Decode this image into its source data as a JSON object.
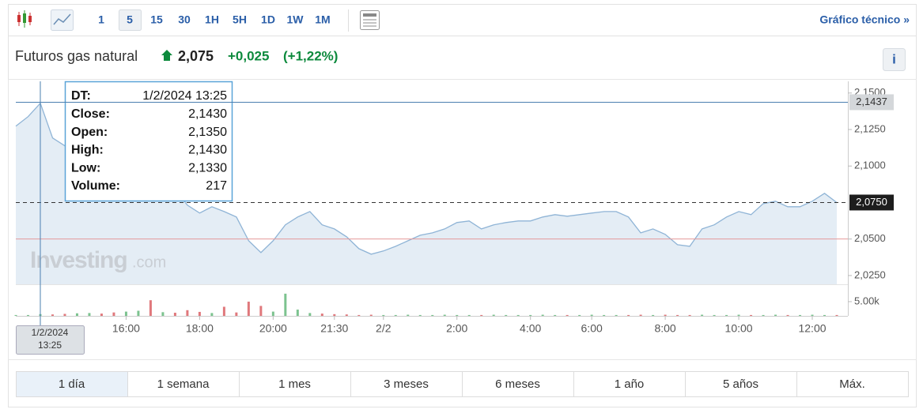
{
  "toolbar": {
    "intervals": [
      "1",
      "5",
      "15",
      "30",
      "1H",
      "5H",
      "1D",
      "1W",
      "1M"
    ],
    "technical_link": "Gráfico técnico »"
  },
  "header": {
    "name": "Futuros gas natural",
    "price": "2,075",
    "change": "+0,025",
    "change_pct": "(+1,22%)",
    "info": "i"
  },
  "tooltip": {
    "rows": [
      [
        "DT:",
        "1/2/2024 13:25"
      ],
      [
        "Close:",
        "2,1430"
      ],
      [
        "Open:",
        "2,1350"
      ],
      [
        "High:",
        "2,1430"
      ],
      [
        "Low:",
        "2,1330"
      ],
      [
        "Volume:",
        "217"
      ]
    ]
  },
  "crosshair_date": [
    "1/2/2024",
    "13:25"
  ],
  "watermark": [
    "Investing",
    ".com"
  ],
  "chart_data": [
    {
      "type": "line",
      "categories": [
        null,
        null,
        null,
        null,
        null,
        null,
        null,
        null,
        null,
        "16:00",
        null,
        null,
        null,
        null,
        null,
        "18:00",
        null,
        null,
        null,
        null,
        null,
        "20:00",
        null,
        null,
        null,
        null,
        "21:30",
        null,
        null,
        null,
        "2/2",
        null,
        null,
        null,
        null,
        null,
        "2:00",
        null,
        null,
        null,
        null,
        null,
        "4:00",
        null,
        null,
        null,
        null,
        "6:00",
        null,
        null,
        null,
        null,
        null,
        "8:00",
        null,
        null,
        null,
        null,
        null,
        "10:00",
        null,
        null,
        null,
        null,
        null,
        "12:00",
        null,
        null
      ],
      "values": [
        2.1273,
        2.1338,
        2.143,
        2.1192,
        2.1138,
        2.1165,
        2.1192,
        2.1002,
        2.0921,
        2.0975,
        2.1029,
        2.0948,
        2.1083,
        2.084,
        2.0732,
        2.0678,
        2.0721,
        2.0688,
        2.0651,
        2.0488,
        2.0407,
        2.0488,
        2.0597,
        2.0651,
        2.0688,
        2.0597,
        2.0569,
        2.0515,
        2.0434,
        2.0396,
        2.0418,
        2.045,
        2.0488,
        2.0526,
        2.0542,
        2.0569,
        2.0613,
        2.0624,
        2.0569,
        2.0597,
        2.0613,
        2.0624,
        2.0624,
        2.0651,
        2.0667,
        2.0656,
        2.0667,
        2.0678,
        2.0688,
        2.0688,
        2.0651,
        2.0542,
        2.0569,
        2.0532,
        2.0461,
        2.045,
        2.0569,
        2.0597,
        2.0651,
        2.0688,
        2.0667,
        2.0743,
        2.0759,
        2.0721,
        2.0721,
        2.0759,
        2.0813,
        2.075
      ],
      "color": "#8fb4d6",
      "fill": "#e4edf5",
      "ylim": [
        2.019,
        2.158
      ],
      "yticks": [
        {
          "value": 2.025,
          "label": "2,0250"
        },
        {
          "value": 2.05,
          "label": "2,0500"
        },
        {
          "value": 2.1,
          "label": "2,1000"
        },
        {
          "value": 2.125,
          "label": "2,1250"
        },
        {
          "value": 2.15,
          "label": "2,1500"
        }
      ],
      "crosshair_price": {
        "value": 2.1437,
        "label": "2,1437"
      },
      "last_price": {
        "value": 2.075,
        "label": "2,0750"
      },
      "reference_line": 2.05
    },
    {
      "type": "bar",
      "values": [
        300,
        300,
        600,
        500,
        700,
        900,
        1000,
        800,
        1200,
        1500,
        1800,
        5500,
        1300,
        1100,
        2000,
        1400,
        1000,
        3200,
        1200,
        5000,
        3500,
        1500,
        7800,
        2200,
        1000,
        800,
        600,
        500,
        300,
        400,
        300,
        300,
        400,
        300,
        300,
        400,
        300,
        300,
        300,
        400,
        300,
        300,
        300,
        400,
        300,
        300,
        300,
        400,
        300,
        300,
        300,
        400,
        300,
        400,
        300,
        300,
        400,
        300,
        300,
        400,
        300,
        300,
        400,
        300,
        300,
        400,
        300,
        300
      ],
      "up_color": "#7cc38f",
      "down_color": "#e0787c",
      "ylim": [
        0,
        11100
      ],
      "yticks": [
        {
          "value": 5000,
          "label": "5.00k"
        }
      ]
    }
  ],
  "range_tabs": [
    "1 día",
    "1 semana",
    "1 mes",
    "3 meses",
    "6 meses",
    "1 año",
    "5 años",
    "Máx."
  ]
}
